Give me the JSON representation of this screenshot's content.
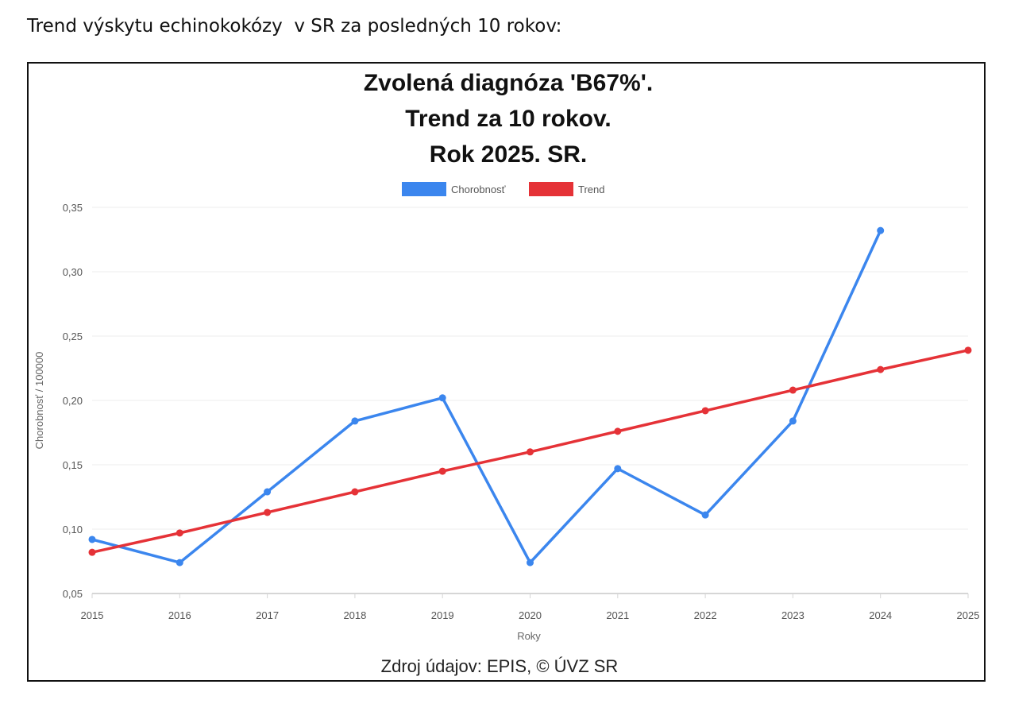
{
  "page": {
    "heading": "Trend výskytu echinokokózy  v SR za posledných 10 rokov:"
  },
  "chart_data": {
    "type": "line",
    "title": [
      "Zvolená diagnóza 'B67%'.",
      "Trend za 10 rokov.",
      "Rok 2025. SR."
    ],
    "xlabel": "Roky",
    "ylabel": "Chorobnosť / 100000",
    "source": "Zdroj údajov: EPIS, © ÚVZ SR",
    "categories": [
      "2015",
      "2016",
      "2017",
      "2018",
      "2019",
      "2020",
      "2021",
      "2022",
      "2023",
      "2024",
      "2025"
    ],
    "y_ticks": [
      "0,05",
      "0,10",
      "0,15",
      "0,20",
      "0,25",
      "0,30",
      "0,35"
    ],
    "ylim": [
      0.05,
      0.35
    ],
    "grid": true,
    "legend_position": "top-center",
    "series": [
      {
        "name": "Chorobnosť",
        "color": "#3b86ee",
        "values": [
          0.092,
          0.074,
          0.129,
          0.184,
          0.202,
          0.074,
          0.147,
          0.111,
          0.184,
          0.332,
          null
        ]
      },
      {
        "name": "Trend",
        "color": "#e53237",
        "values": [
          0.082,
          0.097,
          0.113,
          0.129,
          0.145,
          0.16,
          0.176,
          0.192,
          0.208,
          0.224,
          0.239
        ]
      }
    ]
  }
}
